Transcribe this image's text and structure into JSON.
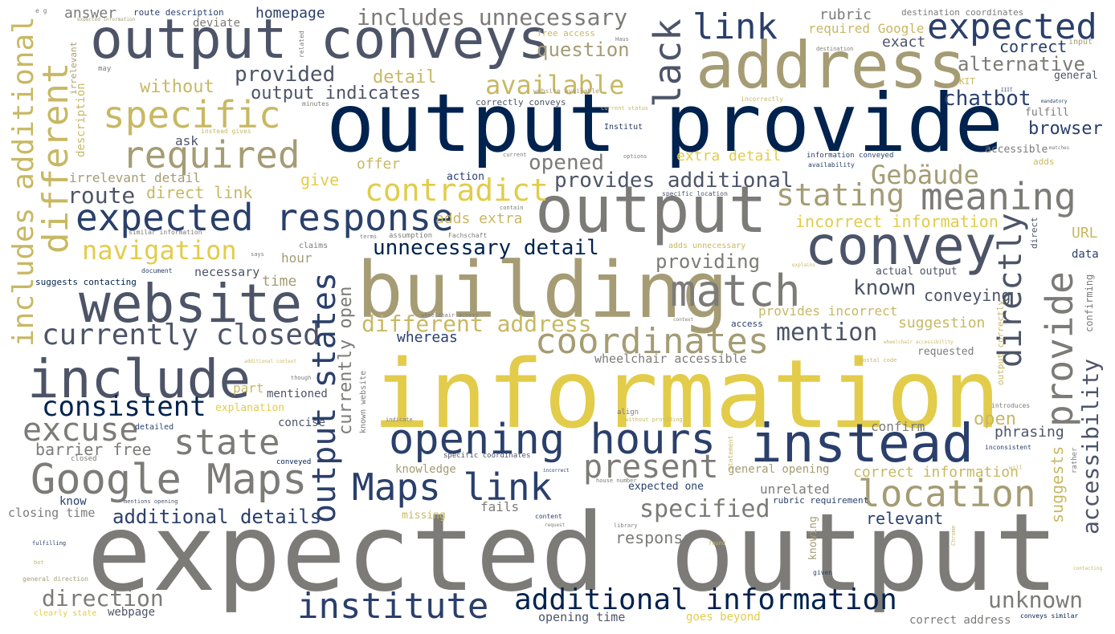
{
  "palette": [
    "#00224e",
    "#2a3f6b",
    "#4d5468",
    "#7c7b78",
    "#a59c74",
    "#c8b863",
    "#e2cc4a"
  ],
  "words": {
    "w_expected_output": "expected output",
    "w_information": "information",
    "w_output_provide": "output provide",
    "w_building": "building",
    "w_output_conveys": "output conveys",
    "w_address": "address",
    "w_output": "output",
    "w_website": "website",
    "w_include": "include",
    "w_instead": "instead",
    "w_convey": "convey",
    "w_match": "match",
    "w_opening_hours": "opening hours",
    "w_expected_response": "expected response",
    "w_google_maps": "Google Maps",
    "w_maps_link": "Maps link",
    "w_required": "required",
    "w_specific": "specific",
    "w_location": "location",
    "w_coordinates": "coordinates",
    "w_meaning": "meaning",
    "w_link": "link",
    "w_expected": "expected",
    "w_institute": "institute",
    "w_additional_information": "additional information",
    "w_state": "state",
    "w_present": "present",
    "w_contradict": "contradict",
    "w_stating": "stating",
    "w_currently_closed": "currently closed",
    "w_excuse": "excuse",
    "w_consistent": "consistent",
    "w_output_states": "output states",
    "w_lack": "lack",
    "w_different": "different",
    "w_includes_additional": "includes additional",
    "w_includes_unnecessary": "includes unnecessary",
    "w_available": "available",
    "w_navigation": "navigation",
    "w_unnecessary_detail": "unnecessary detail",
    "w_different_address": "different address",
    "w_directly": "directly",
    "w_provide": "provide",
    "w_accessibility": "accessibility",
    "w_gebaude": "Gebäude",
    "w_unknown": "unknown",
    "w_specified": "specified",
    "w_mention": "mention",
    "w_direction": "direction",
    "w_route": "route",
    "w_additional_details": "additional details",
    "w_provides_additional": "provides additional",
    "w_chatbot": "chatbot",
    "w_alternative": "alternative",
    "w_provided": "provided",
    "w_output_indicates": "output indicates",
    "w_opened": "opened",
    "w_question": "question",
    "w_browser": "browser",
    "w_known": "known",
    "w_providing": "providing",
    "w_direct_link": "direct link",
    "w_without": "without",
    "w_detail": "detail",
    "w_homepage": "homepage",
    "w_answer": "answer",
    "w_correct": "correct",
    "w_rubric": "rubric",
    "w_exact": "exact",
    "w_required_google": "required Google",
    "w_incorrect_information": "incorrect information",
    "w_extra_detail": "extra detail",
    "w_adds_extra": "adds extra",
    "w_conveying": "conveying",
    "w_suggestion": "suggestion",
    "w_suggests": "suggests",
    "w_currently_open": "currently open",
    "w_barrier_free": "barrier free",
    "w_phrasing": "phrasing",
    "w_relevant": "relevant",
    "w_response": "response",
    "w_correct_information": "correct information",
    "w_open": "open",
    "w_confirm": "confirm",
    "w_unrelated": "unrelated",
    "w_wheelchair_accessible": "wheelchair accessible",
    "w_provides_incorrect": "provides incorrect",
    "w_whereas": "whereas",
    "w_give": "give",
    "w_offer": "offer",
    "w_irrelevant_detail": "irrelevant detail",
    "w_ask": "ask",
    "w_deviate": "deviate",
    "w_route_description": "route description",
    "w_destination_coordinates": "destination coordinates",
    "w_description": "description",
    "w_time": "time",
    "w_hour": "hour",
    "w_necessary": "necessary",
    "w_part": "part",
    "w_explanation": "explanation",
    "w_mentioned": "mentioned",
    "w_concise": "concise",
    "w_closing_time": "closing time",
    "w_know": "know",
    "w_webpage": "webpage",
    "w_clearly_state": "clearly state",
    "w_general_direction": "general direction",
    "w_suggests_contacting": "suggests contacting",
    "w_fails": "fails",
    "w_missing": "missing",
    "w_knowledge": "knowledge",
    "w_opening_time": "opening time",
    "w_goes_beyond": "goes beyond",
    "w_correct_address": "correct address",
    "w_general_opening": "general opening",
    "w_expected_one": "expected one",
    "w_rubric_requirement": "rubric requirement",
    "w_requested": "requested",
    "w_actual_output": "actual output",
    "w_url": "URL",
    "w_data": "data",
    "w_confirming": "confirming",
    "w_general": "general",
    "w_accessible": "accessible",
    "w_fulfill": "fulfill",
    "w_adds": "adds",
    "w_input": "input",
    "w_access": "access",
    "w_knowing": "knowing",
    "w_action": "action",
    "w_free_access": "free access",
    "w_correctly_conveys": "correctly conveys",
    "w_institut": "Institut",
    "w_kit": "KIT",
    "w_conveyed": "conveyed",
    "w_closed": "closed",
    "w_detailed": "detailed",
    "w_claims": "claims",
    "w_assumption": "assumption",
    "w_fachschaft": "Fachschaft",
    "w_adds_unnecessary": "adds unnecessary",
    "w_output_correctly": "output correctly",
    "w_irrelevant": "irrelevant",
    "w_may": "may",
    "w_eg": "e g",
    "w_expected_information": "expected information",
    "w_instead_gives": "instead gives",
    "w_minutes": "minutes",
    "w_similar_information": "similar information",
    "w_document": "document",
    "w_says": "says",
    "w_current_status": "current status",
    "w_incorrectly": "incorrectly",
    "w_website_available": "website available",
    "w_related": "related",
    "w_haus": "Haus",
    "w_destination": "destination",
    "w_mandatory": "mandatory",
    "w_matches": "matches",
    "w_options": "options",
    "w_current": "current",
    "w_information_conveyed": "information conveyed",
    "w_availability": "availability",
    "w_specific_location": "specific location",
    "w_contain": "contain",
    "w_terms": "terms",
    "w_direct": "direct",
    "w_explains": "explains",
    "w_context": "context",
    "w_wheelchair_access": "wheelchair access",
    "w_additional_context": "additional context",
    "w_though": "though",
    "w_known_website": "known website",
    "w_indicate": "indicate",
    "w_align": "align",
    "w_without_providing": "without providing",
    "w_specific_coordinates": "specific coordinates",
    "w_incorrect": "incorrect",
    "w_house_number": "house number",
    "w_statement": "statement",
    "w_content": "content",
    "w_request": "request",
    "w_library": "library",
    "w_found": "found",
    "w_mentions_opening": "mentions opening",
    "w_fulfilling": "fulfilling",
    "w_bot": "bot",
    "w_given": "given",
    "w_contacting": "contacting",
    "w_conveys_similar": "conveys similar",
    "w_introduces": "introduces",
    "w_inconsistent": "inconsistent",
    "w_will": "will",
    "w_rather": "rather",
    "w_postal_code": "postal code",
    "w_wheelchair_accessibility": "wheelchair accessibility",
    "w_iiit": "IIIT",
    "w_chrome": "Chrome"
  }
}
